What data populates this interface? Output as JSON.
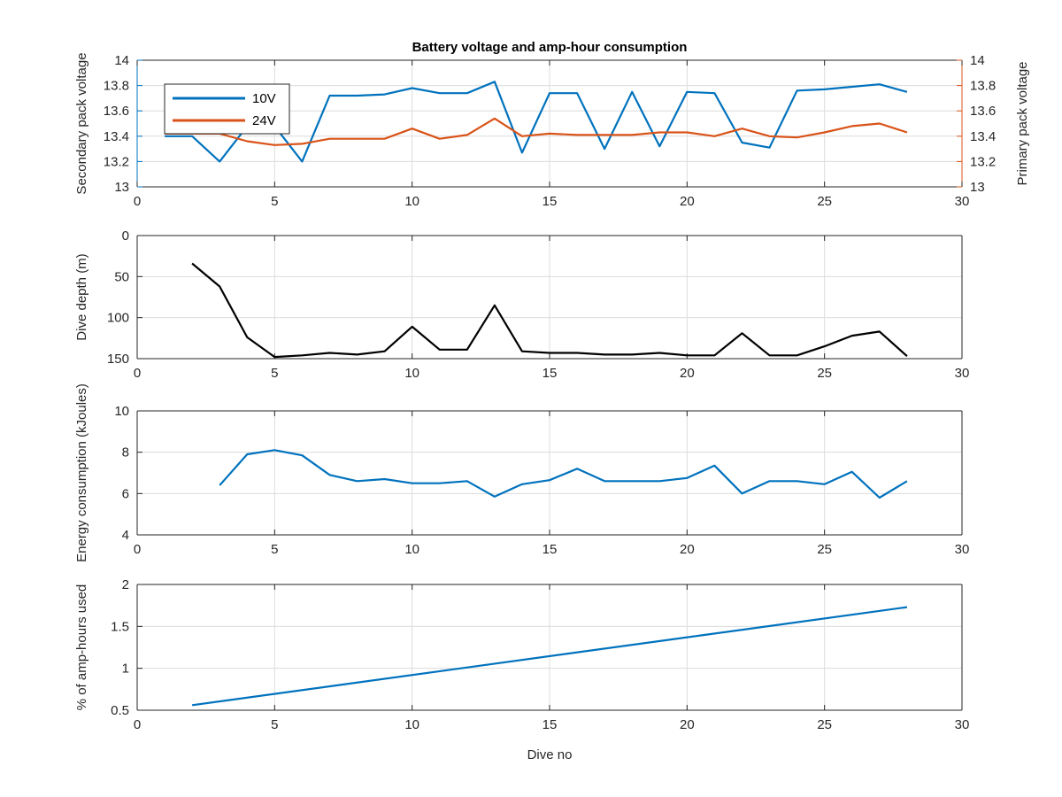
{
  "figure": {
    "title": "Battery voltage and amp-hour consumption",
    "xlabel": "Dive no"
  },
  "chart_data": [
    {
      "type": "line",
      "title": "Battery voltage and amp-hour consumption",
      "xlabel": "",
      "ylabel": "Secondary pack voltage",
      "ylabel_right": "Primary pack voltage",
      "xlim": [
        0,
        30
      ],
      "ylim": [
        13,
        14
      ],
      "ylim_right": [
        13,
        14
      ],
      "xticks": [
        0,
        5,
        10,
        15,
        20,
        25,
        30
      ],
      "yticks": [
        13,
        13.2,
        13.4,
        13.6,
        13.8,
        14
      ],
      "yticks_right": [
        13,
        13.2,
        13.4,
        13.6,
        13.8,
        14
      ],
      "grid": true,
      "legend_position": "top-left",
      "colors": {
        "left_axis": "#0072BD",
        "right_axis": "#D95319"
      },
      "series": [
        {
          "name": "10V",
          "axis": "left",
          "color": "#0072BD",
          "x": [
            1,
            2,
            3,
            4,
            5,
            6,
            7,
            8,
            9,
            10,
            11,
            12,
            13,
            14,
            15,
            16,
            17,
            18,
            19,
            20,
            21,
            22,
            23,
            24,
            25,
            26,
            27,
            28
          ],
          "y": [
            13.4,
            13.4,
            13.2,
            13.48,
            13.48,
            13.2,
            13.72,
            13.72,
            13.73,
            13.78,
            13.74,
            13.74,
            13.83,
            13.27,
            13.74,
            13.74,
            13.3,
            13.75,
            13.32,
            13.75,
            13.74,
            13.35,
            13.31,
            13.76,
            13.77,
            13.79,
            13.81,
            13.75
          ]
        },
        {
          "name": "24V",
          "axis": "right",
          "color": "#D95319",
          "x": [
            1,
            2,
            3,
            4,
            5,
            6,
            7,
            8,
            9,
            10,
            11,
            12,
            13,
            14,
            15,
            16,
            17,
            18,
            19,
            20,
            21,
            22,
            23,
            24,
            25,
            26,
            27,
            28
          ],
          "y": [
            13.42,
            13.42,
            13.42,
            13.36,
            13.33,
            13.34,
            13.38,
            13.38,
            13.38,
            13.46,
            13.38,
            13.41,
            13.54,
            13.4,
            13.42,
            13.41,
            13.41,
            13.41,
            13.43,
            13.43,
            13.4,
            13.46,
            13.4,
            13.39,
            13.43,
            13.48,
            13.5,
            13.43
          ]
        }
      ]
    },
    {
      "type": "line",
      "xlabel": "",
      "ylabel": "Dive depth (m)",
      "xlim": [
        0,
        30
      ],
      "ylim": [
        0,
        150
      ],
      "y_reversed": true,
      "xticks": [
        0,
        5,
        10,
        15,
        20,
        25,
        30
      ],
      "yticks": [
        0,
        50,
        100,
        150
      ],
      "grid": true,
      "series": [
        {
          "color": "#000000",
          "x": [
            2,
            3,
            4,
            5,
            6,
            7,
            8,
            9,
            10,
            11,
            12,
            13,
            14,
            15,
            16,
            17,
            18,
            19,
            20,
            21,
            22,
            23,
            24,
            25,
            26,
            27,
            28
          ],
          "y": [
            34,
            62,
            124,
            148,
            146,
            143,
            145,
            141,
            111,
            139,
            139,
            85,
            141,
            143,
            143,
            145,
            145,
            143,
            146,
            146,
            119,
            146,
            146,
            135,
            122,
            117,
            147
          ]
        }
      ]
    },
    {
      "type": "line",
      "xlabel": "",
      "ylabel": "Energy consumption (kJoules)",
      "xlim": [
        0,
        30
      ],
      "ylim": [
        4,
        10
      ],
      "xticks": [
        0,
        5,
        10,
        15,
        20,
        25,
        30
      ],
      "yticks": [
        4,
        6,
        8,
        10
      ],
      "grid": true,
      "series": [
        {
          "color": "#0072BD",
          "x": [
            3,
            4,
            5,
            6,
            7,
            8,
            9,
            10,
            11,
            12,
            13,
            14,
            15,
            16,
            17,
            18,
            19,
            20,
            21,
            22,
            23,
            24,
            25,
            26,
            27,
            28
          ],
          "y": [
            6.4,
            7.9,
            8.1,
            7.85,
            6.9,
            6.6,
            6.7,
            6.5,
            6.5,
            6.6,
            5.85,
            6.45,
            6.65,
            7.2,
            6.6,
            6.6,
            6.6,
            6.75,
            7.35,
            6.0,
            6.6,
            6.6,
            6.45,
            7.05,
            5.8,
            6.6
          ]
        }
      ]
    },
    {
      "type": "line",
      "xlabel": "Dive no",
      "ylabel": "% of amp-hours used",
      "xlim": [
        0,
        30
      ],
      "ylim": [
        0.5,
        2
      ],
      "xticks": [
        0,
        5,
        10,
        15,
        20,
        25,
        30
      ],
      "yticks": [
        0.5,
        1,
        1.5,
        2
      ],
      "grid": true,
      "series": [
        {
          "color": "#0072BD",
          "x": [
            2,
            28
          ],
          "y": [
            0.56,
            1.73
          ]
        }
      ]
    }
  ]
}
